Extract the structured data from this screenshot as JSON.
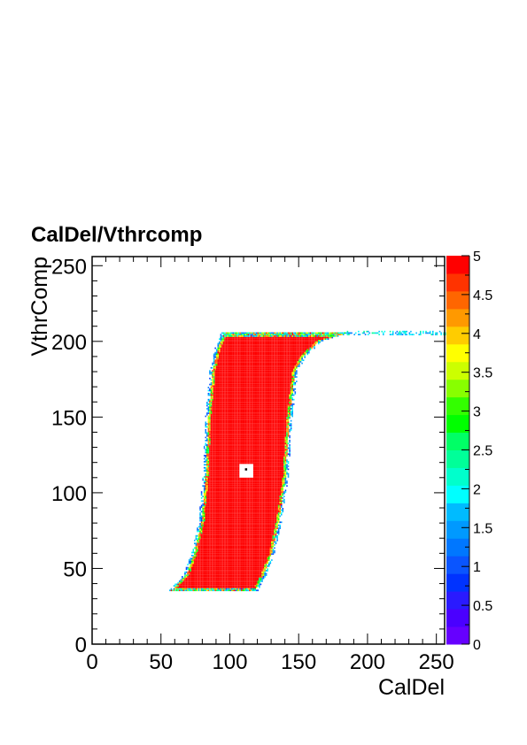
{
  "chart_data": {
    "type": "heatmap",
    "title": "CalDel/Vthrcomp",
    "xlabel": "CalDel",
    "ylabel": "VthrComp",
    "xlim": [
      0,
      256
    ],
    "ylim": [
      0,
      256
    ],
    "zlim": [
      0,
      5
    ],
    "x_ticks": [
      "0",
      "50",
      "100",
      "150",
      "200",
      "250"
    ],
    "y_ticks": [
      "0",
      "50",
      "100",
      "150",
      "200",
      "250"
    ],
    "z_ticks": [
      "0",
      "0.5",
      "1",
      "1.5",
      "2",
      "2.5",
      "3",
      "3.5",
      "4",
      "4.5",
      "5"
    ],
    "palette": [
      "#6600ff",
      "#4a00ff",
      "#2a1aff",
      "#0033ff",
      "#0a55ff",
      "#0077ff",
      "#0099ff",
      "#00bbff",
      "#00ffff",
      "#00ffcc",
      "#00ff99",
      "#00ff66",
      "#00ff00",
      "#33ff00",
      "#88ff00",
      "#ccff00",
      "#ffff00",
      "#ffcc00",
      "#ff9900",
      "#ff6600",
      "#ff3300",
      "#ff0000"
    ],
    "region": {
      "value": 5,
      "y_range": [
        35,
        205
      ],
      "left_edge": [
        [
          35,
          57
        ],
        [
          45,
          68
        ],
        [
          60,
          74
        ],
        [
          80,
          79
        ],
        [
          110,
          82
        ],
        [
          150,
          84
        ],
        [
          180,
          87
        ],
        [
          195,
          91
        ],
        [
          203,
          95
        ]
      ],
      "right_edge": [
        [
          35,
          118
        ],
        [
          45,
          124
        ],
        [
          60,
          130
        ],
        [
          80,
          135
        ],
        [
          110,
          140
        ],
        [
          150,
          143
        ],
        [
          180,
          147
        ],
        [
          190,
          153
        ],
        [
          200,
          165
        ],
        [
          205,
          185
        ]
      ],
      "tail": {
        "x_range": [
          185,
          256
        ],
        "y": 205,
        "value": 1.2
      }
    },
    "hole": {
      "x_range": [
        107,
        117
      ],
      "y_range": [
        110,
        119
      ],
      "dot": [
        111,
        115
      ]
    }
  }
}
